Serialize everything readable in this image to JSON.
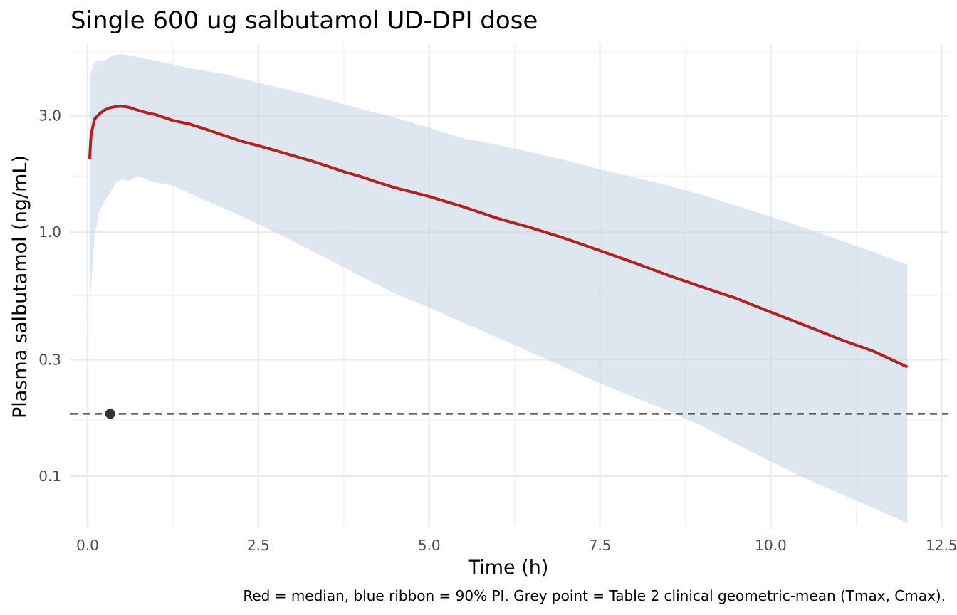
{
  "chart_data": {
    "type": "line",
    "title": "Single 600 ug salbutamol UD-DPI dose",
    "xlabel": "Time (h)",
    "ylabel": "Plasma salbutamol (ng/mL)",
    "caption": "Red = median, blue ribbon = 90% PI. Grey point = Table 2 clinical geometric-mean (Tmax, Cmax).",
    "x_scale": "linear",
    "y_scale": "log10",
    "xlim": [
      -0.25,
      12.6
    ],
    "ylim": [
      0.062,
      5.9
    ],
    "x_ticks": [
      0,
      2.5,
      5,
      7.5,
      10,
      12.5
    ],
    "x_tick_labels": [
      "0.0",
      "2.5",
      "5.0",
      "7.5",
      "10.0",
      "12.5"
    ],
    "y_ticks": [
      0.1,
      0.3,
      1.0,
      3.0
    ],
    "y_tick_labels": [
      "0.1",
      "0.3",
      "1.0",
      "3.0"
    ],
    "y_minor_ticks": [
      0.17,
      0.55,
      1.7,
      5.5
    ],
    "grid": true,
    "legend": "none",
    "colors": {
      "median": "#b22222",
      "ribbon": "#c6d6e6",
      "point": "#333333",
      "reference_line": "#4d4d4d"
    },
    "series": [
      {
        "name": "median",
        "x": [
          0.03,
          0.05,
          0.1,
          0.17,
          0.25,
          0.33,
          0.42,
          0.5,
          0.6,
          0.75,
          0.9,
          1.0,
          1.25,
          1.5,
          1.75,
          2.0,
          2.25,
          2.5,
          2.75,
          3.0,
          3.25,
          3.5,
          3.75,
          4.0,
          4.25,
          4.5,
          5.0,
          5.5,
          6.0,
          6.5,
          7.0,
          7.5,
          8.0,
          8.5,
          9.0,
          9.5,
          10.0,
          10.5,
          11.0,
          11.5,
          12.0
        ],
        "y": [
          2.0,
          2.5,
          2.9,
          3.05,
          3.17,
          3.24,
          3.27,
          3.28,
          3.25,
          3.15,
          3.07,
          3.03,
          2.87,
          2.77,
          2.63,
          2.49,
          2.36,
          2.26,
          2.16,
          2.06,
          1.97,
          1.87,
          1.77,
          1.69,
          1.6,
          1.52,
          1.4,
          1.27,
          1.14,
          1.04,
          0.94,
          0.84,
          0.75,
          0.665,
          0.595,
          0.535,
          0.47,
          0.415,
          0.365,
          0.325,
          0.28
        ]
      },
      {
        "name": "ribbon_upper",
        "x": [
          0.03,
          0.05,
          0.1,
          0.17,
          0.25,
          0.33,
          0.42,
          0.5,
          0.6,
          0.75,
          1.0,
          1.5,
          2.0,
          2.5,
          3.0,
          3.5,
          4.0,
          4.5,
          5.0,
          5.5,
          6.0,
          6.5,
          7.0,
          7.5,
          8.0,
          8.5,
          9.0,
          9.5,
          10.0,
          10.5,
          11.0,
          11.5,
          12.0
        ],
        "y": [
          4.2,
          4.5,
          5.0,
          5.05,
          5.05,
          5.25,
          5.35,
          5.36,
          5.32,
          5.2,
          5.05,
          4.7,
          4.45,
          4.1,
          3.8,
          3.5,
          3.2,
          2.95,
          2.68,
          2.42,
          2.28,
          2.12,
          1.97,
          1.81,
          1.68,
          1.55,
          1.42,
          1.28,
          1.16,
          1.04,
          0.93,
          0.83,
          0.735
        ]
      },
      {
        "name": "ribbon_lower",
        "x": [
          0.03,
          0.05,
          0.1,
          0.17,
          0.25,
          0.33,
          0.42,
          0.5,
          0.6,
          0.75,
          0.9,
          1.0,
          1.25,
          1.5,
          2.0,
          2.5,
          3.0,
          3.5,
          4.0,
          4.5,
          5.0,
          5.5,
          6.0,
          6.5,
          7.0,
          7.5,
          8.0,
          8.5,
          9.0,
          9.5,
          10.0,
          10.5,
          11.0,
          11.5,
          12.0
        ],
        "y": [
          0.38,
          0.6,
          0.95,
          1.22,
          1.35,
          1.45,
          1.6,
          1.65,
          1.62,
          1.7,
          1.63,
          1.6,
          1.55,
          1.44,
          1.25,
          1.08,
          0.92,
          0.78,
          0.66,
          0.56,
          0.49,
          0.425,
          0.37,
          0.32,
          0.278,
          0.24,
          0.21,
          0.185,
          0.16,
          0.135,
          0.115,
          0.098,
          0.085,
          0.074,
          0.064
        ]
      }
    ],
    "points": [
      {
        "name": "Table 2 clinical geometric-mean",
        "x": 0.33,
        "y": 0.18
      }
    ],
    "reference_lines": [
      {
        "orientation": "horizontal",
        "y": 0.18,
        "style": "dashed"
      }
    ]
  }
}
